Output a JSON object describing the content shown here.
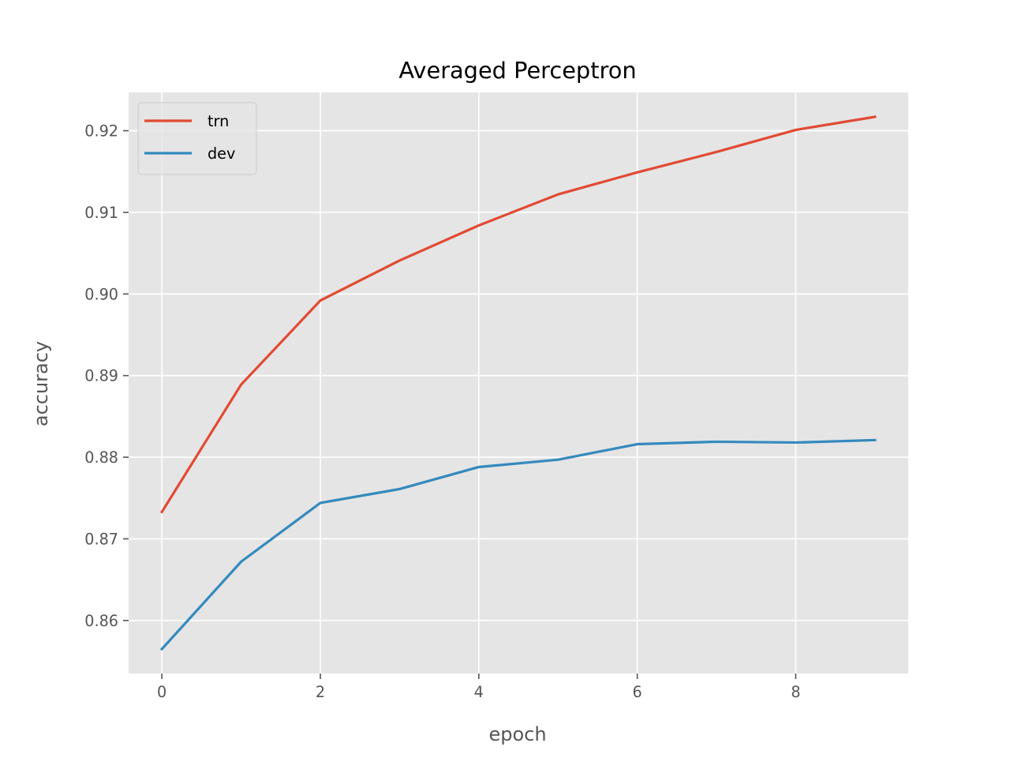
{
  "chart_data": {
    "type": "line",
    "title": "Averaged Perceptron",
    "xlabel": "epoch",
    "ylabel": "accuracy",
    "xlim": [
      -0.42,
      9.42
    ],
    "ylim": [
      0.8535,
      0.9247
    ],
    "x": [
      0,
      1,
      2,
      3,
      4,
      5,
      6,
      7,
      8,
      9
    ],
    "xticks": [
      0,
      2,
      4,
      6,
      8
    ],
    "xtick_labels": [
      "0",
      "2",
      "4",
      "6",
      "8"
    ],
    "yticks": [
      0.86,
      0.87,
      0.88,
      0.89,
      0.9,
      0.91,
      0.92
    ],
    "ytick_labels": [
      "0.86",
      "0.87",
      "0.88",
      "0.89",
      "0.90",
      "0.91",
      "0.92"
    ],
    "grid": true,
    "legend_position": "top-left",
    "series": [
      {
        "name": "trn",
        "color": "#E24A33",
        "values": [
          0.8733,
          0.8889,
          0.8992,
          0.9041,
          0.9084,
          0.9122,
          0.9149,
          0.9174,
          0.9201,
          0.9217
        ]
      },
      {
        "name": "dev",
        "color": "#348ABD",
        "values": [
          0.8565,
          0.8672,
          0.8744,
          0.8761,
          0.8788,
          0.8797,
          0.8816,
          0.8819,
          0.8818,
          0.8821
        ]
      }
    ],
    "style": {
      "plot_background": "#E5E5E5",
      "grid_color": "#FFFFFF"
    }
  }
}
